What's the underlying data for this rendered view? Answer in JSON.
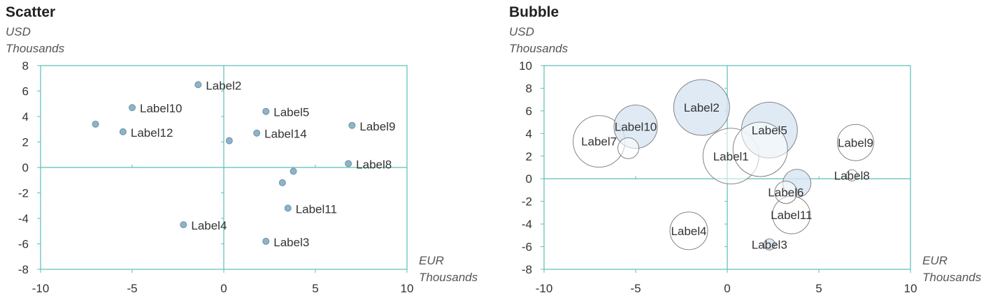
{
  "chart_data": [
    {
      "type": "scatter",
      "title": "Scatter",
      "ylabel": [
        "USD",
        "Thousands"
      ],
      "xlabel": [
        "EUR",
        "Thousands"
      ],
      "xlim": [
        -10,
        10
      ],
      "ylim": [
        -8,
        8
      ],
      "xticks": [
        -10,
        -5,
        0,
        5,
        10
      ],
      "yticks": [
        -8,
        -6,
        -4,
        -2,
        0,
        2,
        4,
        6,
        8
      ],
      "marker_color": "#8fb3c7",
      "points": [
        {
          "x": 0.3,
          "y": 2.1,
          "label": ""
        },
        {
          "x": -1.4,
          "y": 6.5,
          "label": "Label2"
        },
        {
          "x": 2.3,
          "y": -5.8,
          "label": "Label3"
        },
        {
          "x": -2.2,
          "y": -4.5,
          "label": "Label4"
        },
        {
          "x": 2.3,
          "y": 4.4,
          "label": "Label5"
        },
        {
          "x": 3.8,
          "y": -0.3,
          "label": ""
        },
        {
          "x": -7.0,
          "y": 3.4,
          "label": ""
        },
        {
          "x": 6.8,
          "y": 0.3,
          "label": "Label8"
        },
        {
          "x": 7.0,
          "y": 3.3,
          "label": "Label9"
        },
        {
          "x": -5.0,
          "y": 4.7,
          "label": "Label10"
        },
        {
          "x": 3.5,
          "y": -3.2,
          "label": "Label11"
        },
        {
          "x": -5.5,
          "y": 2.8,
          "label": "Label12"
        },
        {
          "x": 3.2,
          "y": -1.2,
          "label": ""
        },
        {
          "x": 1.8,
          "y": 2.7,
          "label": "Label14"
        }
      ]
    },
    {
      "type": "bubble",
      "title": "Bubble",
      "ylabel": [
        "USD",
        "Thousands"
      ],
      "xlabel": [
        "EUR",
        "Thousands"
      ],
      "xlim": [
        -10,
        10
      ],
      "ylim": [
        -8,
        10
      ],
      "xticks": [
        -10,
        -5,
        0,
        5,
        10
      ],
      "yticks": [
        -8,
        -6,
        -4,
        -2,
        0,
        2,
        4,
        6,
        8,
        10
      ],
      "filled_color": "#d7e5f3",
      "points": [
        {
          "x": 0.2,
          "y": 2.0,
          "size": 40,
          "filled": false,
          "label": "Label1"
        },
        {
          "x": -1.4,
          "y": 6.3,
          "size": 40,
          "filled": true,
          "label": "Label2"
        },
        {
          "x": 2.3,
          "y": -5.8,
          "size": 8,
          "filled": true,
          "label": "Label3"
        },
        {
          "x": -2.1,
          "y": -4.6,
          "size": 27,
          "filled": false,
          "label": "Label4"
        },
        {
          "x": 2.3,
          "y": 4.3,
          "size": 40,
          "filled": true,
          "label": "Label5"
        },
        {
          "x": 3.8,
          "y": -0.4,
          "size": 20,
          "filled": true,
          "label": ""
        },
        {
          "x": -7.0,
          "y": 3.3,
          "size": 37,
          "filled": false,
          "label": "Label7"
        },
        {
          "x": 6.8,
          "y": 0.3,
          "size": 8,
          "filled": false,
          "label": "Label8"
        },
        {
          "x": 7.0,
          "y": 3.2,
          "size": 26,
          "filled": false,
          "label": "Label9"
        },
        {
          "x": -5.0,
          "y": 4.6,
          "size": 31,
          "filled": true,
          "label": "Label10"
        },
        {
          "x": 3.5,
          "y": -3.2,
          "size": 27,
          "filled": false,
          "label": "Label11"
        },
        {
          "x": -5.4,
          "y": 2.7,
          "size": 15,
          "filled": false,
          "label": ""
        },
        {
          "x": 3.2,
          "y": -1.2,
          "size": 16,
          "filled": false,
          "label": "Label6"
        },
        {
          "x": 1.8,
          "y": 2.6,
          "size": 39,
          "filled": false,
          "label": ""
        }
      ]
    }
  ],
  "style": {
    "axis_color": "#5bbfb5",
    "text_color": "#333333",
    "edge_color": "#777777"
  }
}
